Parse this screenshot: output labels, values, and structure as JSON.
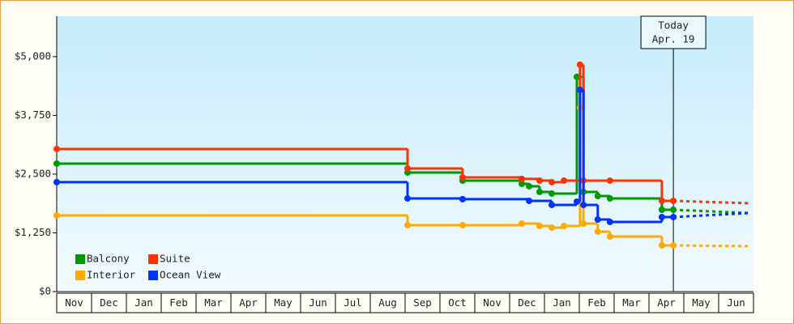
{
  "chart_data": {
    "type": "line",
    "categories": [
      "Nov",
      "Dec",
      "Jan",
      "Feb",
      "Mar",
      "Apr",
      "May",
      "Jun",
      "Jul",
      "Aug",
      "Sep",
      "Oct",
      "Nov",
      "Dec",
      "Jan",
      "Feb",
      "Mar",
      "Apr",
      "May",
      "Jun"
    ],
    "xlim": [
      0,
      20
    ],
    "ylim": [
      0,
      5860
    ],
    "yticks": [
      {
        "value": 0,
        "label": "$0"
      },
      {
        "value": 1250,
        "label": "$1,250"
      },
      {
        "value": 2500,
        "label": "$2,500"
      },
      {
        "value": 3750,
        "label": "$3,750"
      },
      {
        "value": 5000,
        "label": "$5,000"
      }
    ],
    "today": {
      "x": 17.7,
      "label": [
        "Today",
        "Apr. 19"
      ]
    },
    "series": [
      {
        "name": "Balcony",
        "color": "#009900",
        "x": [
          0,
          10.07,
          11.65,
          13.35,
          13.56,
          13.86,
          14.21,
          14.93,
          15.12,
          15.53,
          15.88,
          17.37,
          17.7
        ],
        "values": [
          2724,
          2534,
          2362,
          2293,
          2241,
          2121,
          2086,
          4569,
          2121,
          2034,
          1983,
          1741,
          1741
        ],
        "forecast": {
          "x": [
            17.7,
            19.88
          ],
          "values": [
            1741,
            1672
          ]
        }
      },
      {
        "name": "Suite",
        "color": "#ff3300",
        "x": [
          0,
          10.07,
          11.65,
          13.35,
          13.86,
          14.21,
          14.56,
          15.02,
          15.12,
          15.88,
          17.37,
          17.7
        ],
        "values": [
          3034,
          2620,
          2431,
          2397,
          2362,
          2328,
          2362,
          4828,
          2362,
          2362,
          1931,
          1931
        ],
        "forecast": {
          "x": [
            17.7,
            19.88
          ],
          "values": [
            1931,
            1879
          ]
        }
      },
      {
        "name": "Interior",
        "color": "#ffaa00",
        "x": [
          0,
          10.07,
          11.65,
          13.35,
          13.86,
          14.21,
          14.56,
          15.02,
          15.12,
          15.53,
          15.88,
          17.37,
          17.7
        ],
        "values": [
          1621,
          1414,
          1414,
          1448,
          1397,
          1362,
          1397,
          3914,
          1448,
          1276,
          1172,
          983,
          983
        ],
        "forecast": {
          "x": [
            17.7,
            19.88
          ],
          "values": [
            983,
            966
          ]
        }
      },
      {
        "name": "Ocean View",
        "color": "#0033ff",
        "x": [
          0,
          10.07,
          11.65,
          13.56,
          14.21,
          14.93,
          15.02,
          15.12,
          15.53,
          15.88,
          17.37,
          17.7
        ],
        "values": [
          2328,
          1983,
          1966,
          1931,
          1845,
          1914,
          4293,
          1845,
          1534,
          1483,
          1586,
          1586
        ],
        "forecast": {
          "x": [
            17.7,
            19.88
          ],
          "values": [
            1586,
            1672
          ]
        }
      }
    ]
  }
}
